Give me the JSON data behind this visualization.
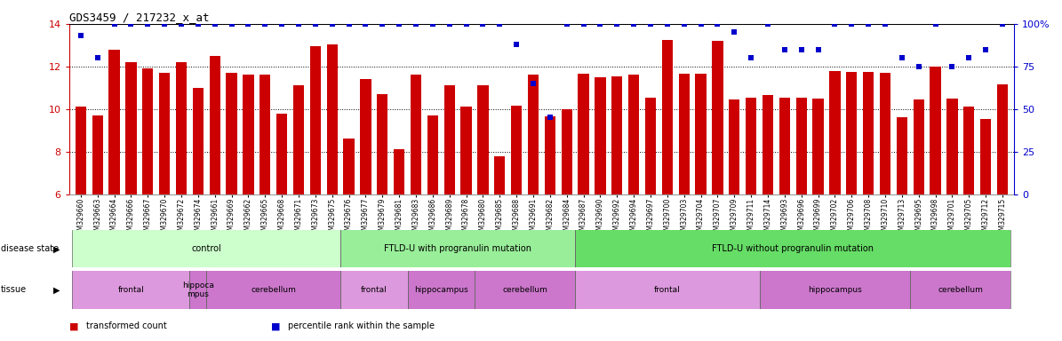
{
  "title": "GDS3459 / 217232_x_at",
  "samples": [
    "GSM329660",
    "GSM329663",
    "GSM329664",
    "GSM329666",
    "GSM329667",
    "GSM329670",
    "GSM329672",
    "GSM329674",
    "GSM329661",
    "GSM329669",
    "GSM329662",
    "GSM329665",
    "GSM329668",
    "GSM329671",
    "GSM329673",
    "GSM329675",
    "GSM329676",
    "GSM329677",
    "GSM329679",
    "GSM329681",
    "GSM329683",
    "GSM329686",
    "GSM329689",
    "GSM329678",
    "GSM329680",
    "GSM329685",
    "GSM329688",
    "GSM329691",
    "GSM329682",
    "GSM329684",
    "GSM329687",
    "GSM329690",
    "GSM329692",
    "GSM329694",
    "GSM329697",
    "GSM329700",
    "GSM329703",
    "GSM329704",
    "GSM329707",
    "GSM329709",
    "GSM329711",
    "GSM329714",
    "GSM329693",
    "GSM329696",
    "GSM329699",
    "GSM329702",
    "GSM329706",
    "GSM329708",
    "GSM329710",
    "GSM329713",
    "GSM329695",
    "GSM329698",
    "GSM329701",
    "GSM329705",
    "GSM329712",
    "GSM329715"
  ],
  "bar_values": [
    10.1,
    9.7,
    12.8,
    12.2,
    11.9,
    11.7,
    12.2,
    11.0,
    12.5,
    11.7,
    11.6,
    11.6,
    9.8,
    11.1,
    12.95,
    13.05,
    8.6,
    11.4,
    10.7,
    8.1,
    11.6,
    9.7,
    11.1,
    10.1,
    11.1,
    7.8,
    10.15,
    11.6,
    9.65,
    10.0,
    11.65,
    11.5,
    11.55,
    11.6,
    10.55,
    13.25,
    11.65,
    11.65,
    13.2,
    10.45,
    10.55,
    10.65,
    10.55,
    10.55,
    10.5,
    11.8,
    11.75,
    11.75,
    11.7,
    9.6,
    10.45,
    12.0,
    10.5,
    10.1,
    9.55,
    11.15
  ],
  "percentile_values": [
    93,
    80,
    100,
    100,
    100,
    100,
    100,
    100,
    100,
    100,
    100,
    100,
    100,
    100,
    100,
    100,
    100,
    100,
    100,
    100,
    100,
    100,
    100,
    100,
    100,
    100,
    88,
    65,
    45,
    100,
    100,
    100,
    100,
    100,
    100,
    100,
    100,
    100,
    100,
    95,
    80,
    100,
    85,
    85,
    85,
    100,
    100,
    100,
    100,
    80,
    75,
    100,
    75,
    80,
    85,
    100
  ],
  "ylim_left": [
    6,
    14
  ],
  "ylim_right": [
    0,
    100
  ],
  "yticks_left": [
    6,
    8,
    10,
    12,
    14
  ],
  "yticks_right": [
    0,
    25,
    50,
    75,
    100
  ],
  "bar_color": "#cc0000",
  "dot_color": "#0000cc",
  "disease_state_groups": [
    {
      "label": "control",
      "start": 0,
      "end": 15,
      "color": "#ccffcc"
    },
    {
      "label": "FTLD-U with progranulin mutation",
      "start": 16,
      "end": 29,
      "color": "#99ee99"
    },
    {
      "label": "FTLD-U without progranulin mutation",
      "start": 30,
      "end": 55,
      "color": "#66dd66"
    }
  ],
  "tissue_groups": [
    {
      "label": "frontal",
      "start": 0,
      "end": 6,
      "color": "#dd99dd"
    },
    {
      "label": "hippoca\nmpus",
      "start": 7,
      "end": 7,
      "color": "#cc77cc"
    },
    {
      "label": "cerebellum",
      "start": 8,
      "end": 15,
      "color": "#cc77cc"
    },
    {
      "label": "frontal",
      "start": 16,
      "end": 19,
      "color": "#dd99dd"
    },
    {
      "label": "hippocampus",
      "start": 20,
      "end": 23,
      "color": "#cc77cc"
    },
    {
      "label": "cerebellum",
      "start": 24,
      "end": 29,
      "color": "#cc77cc"
    },
    {
      "label": "frontal",
      "start": 30,
      "end": 40,
      "color": "#dd99dd"
    },
    {
      "label": "hippocampus",
      "start": 41,
      "end": 49,
      "color": "#cc77cc"
    },
    {
      "label": "cerebellum",
      "start": 50,
      "end": 55,
      "color": "#cc77cc"
    }
  ],
  "legend_items": [
    {
      "label": "transformed count",
      "color": "#cc0000"
    },
    {
      "label": "percentile rank within the sample",
      "color": "#0000cc"
    }
  ]
}
